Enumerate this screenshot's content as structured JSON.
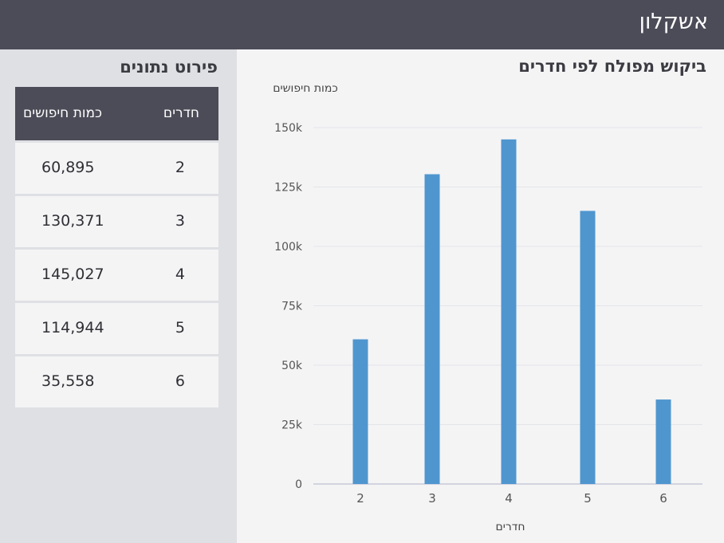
{
  "header": {
    "title": "אשקלון"
  },
  "sidebar": {
    "title": "פירוט נתונים",
    "table": {
      "col_rooms": "חדרים",
      "col_count": "כמות חיפושים",
      "rows": [
        {
          "rooms": "2",
          "count": "60,895"
        },
        {
          "rooms": "3",
          "count": "130,371"
        },
        {
          "rooms": "4",
          "count": "145,027"
        },
        {
          "rooms": "5",
          "count": "114,944"
        },
        {
          "rooms": "6",
          "count": "35,558"
        }
      ]
    }
  },
  "colors": {
    "bar": "#4f96cf",
    "header_bg": "#4c4c58",
    "sidebar_bg": "#dfe0e4"
  },
  "chart_data": {
    "type": "bar",
    "title": "ביקוש מפולח לפי חדרים",
    "ylabel": "כמות חיפושים",
    "xlabel": "חדרים",
    "categories": [
      "2",
      "3",
      "4",
      "5",
      "6"
    ],
    "values": [
      60895,
      130371,
      145027,
      114944,
      35558
    ],
    "ylim": [
      0,
      150000
    ],
    "yticks": [
      0,
      25000,
      50000,
      75000,
      100000,
      125000,
      150000
    ],
    "ytick_labels": [
      "0",
      "25k",
      "50k",
      "75k",
      "100k",
      "125k",
      "150k"
    ],
    "grid": true,
    "legend": "none"
  }
}
